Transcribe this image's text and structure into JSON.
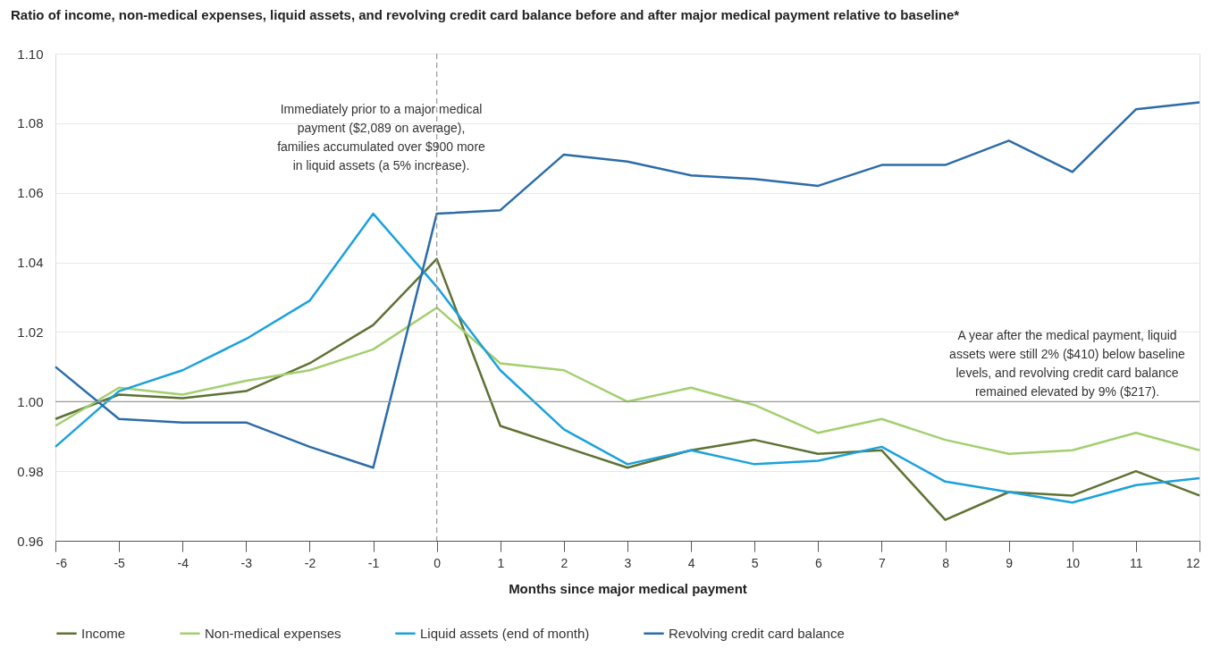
{
  "chart_data": {
    "type": "line",
    "title": "Ratio of income, non-medical expenses, liquid assets, and revolving credit card balance before and after major medical payment relative to baseline*",
    "xlabel": "Months since major medical payment",
    "x": [
      -6,
      -5,
      -4,
      -3,
      -2,
      -1,
      0,
      1,
      2,
      3,
      4,
      5,
      6,
      7,
      8,
      9,
      10,
      11,
      12
    ],
    "series": [
      {
        "name": "Income",
        "color": "#5e7233",
        "values": [
          0.995,
          1.002,
          1.001,
          1.003,
          1.011,
          1.022,
          1.041,
          0.993,
          0.987,
          0.981,
          0.986,
          0.989,
          0.985,
          0.986,
          0.966,
          0.974,
          0.973,
          0.98,
          0.973
        ]
      },
      {
        "name": "Non-medical expenses",
        "color": "#a3cf6e",
        "values": [
          0.993,
          1.004,
          1.002,
          1.006,
          1.009,
          1.015,
          1.027,
          1.011,
          1.009,
          1.0,
          1.004,
          0.999,
          0.991,
          0.995,
          0.989,
          0.985,
          0.986,
          0.991,
          0.986
        ]
      },
      {
        "name": "Liquid assets (end of month)",
        "color": "#1ba1dc",
        "values": [
          0.987,
          1.003,
          1.009,
          1.018,
          1.029,
          1.054,
          1.033,
          1.009,
          0.992,
          0.982,
          0.986,
          0.982,
          0.983,
          0.987,
          0.977,
          0.974,
          0.971,
          0.976,
          0.978
        ]
      },
      {
        "name": "Revolving credit card balance",
        "color": "#2b6ca8",
        "values": [
          1.01,
          0.995,
          0.994,
          0.994,
          0.987,
          0.981,
          1.054,
          1.055,
          1.071,
          1.069,
          1.065,
          1.064,
          1.062,
          1.068,
          1.068,
          1.075,
          1.066,
          1.084,
          1.086
        ]
      }
    ],
    "xlim": [
      -6,
      12
    ],
    "xticks": [
      -6,
      -5,
      -4,
      -3,
      -2,
      -1,
      0,
      1,
      2,
      3,
      4,
      5,
      6,
      7,
      8,
      9,
      10,
      11,
      12
    ],
    "ylim": [
      0.96,
      1.1
    ],
    "yticks": [
      {
        "value": 0.96,
        "label": "0.96"
      },
      {
        "value": 0.98,
        "label": "0.98"
      },
      {
        "value": 1.0,
        "label": "1.00"
      },
      {
        "value": 1.02,
        "label": "1.02"
      },
      {
        "value": 1.04,
        "label": "1.04"
      },
      {
        "value": 1.06,
        "label": "1.06"
      },
      {
        "value": 1.08,
        "label": "1.08"
      },
      {
        "value": 1.1,
        "label": "1.10"
      }
    ],
    "ref_lines": [
      {
        "axis": "y",
        "value": 1.0,
        "color": "#999999",
        "line_style": "solid"
      },
      {
        "axis": "x",
        "value": 0,
        "color": "#999999",
        "line_style": "dashed"
      }
    ],
    "annotations": [
      "Immediately prior to a major medical payment ($2,089 on average), families accumulated over $900 more in liquid assets (a 5% increase).",
      "A year after the medical payment, liquid assets were still 2% ($410) below baseline levels, and revolving credit card balance remained elevated by 9% ($217)."
    ],
    "grid": "y",
    "legend": "bottom",
    "marker": "none",
    "line_style": "solid"
  }
}
